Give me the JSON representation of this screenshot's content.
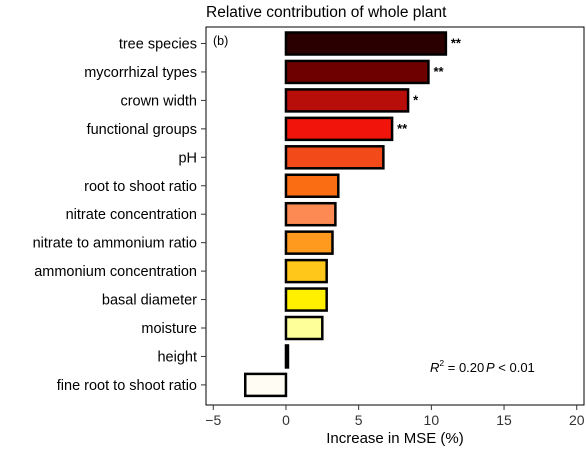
{
  "chart_data": {
    "type": "bar",
    "orientation": "horizontal",
    "title": "Relative contribution of whole plant",
    "panel_tag": "(b)",
    "xlabel": "Increase in MSE (%)",
    "ylabel": "",
    "xlim": [
      -5.5,
      20.5
    ],
    "xticks": [
      -5,
      0,
      5,
      10,
      15,
      20
    ],
    "xtick_labels": [
      "−5",
      "0",
      "5",
      "10",
      "15",
      "20"
    ],
    "grid": false,
    "categories": [
      "tree species",
      "mycorrhizal types",
      "crown width",
      "functional groups",
      "pH",
      "root to shoot ratio",
      "nitrate concentration",
      "nitrate to ammonium ratio",
      "ammonium concentration",
      "basal diameter",
      "moisture",
      "height",
      "fine root to shoot ratio"
    ],
    "values": [
      11.0,
      9.8,
      8.4,
      7.3,
      6.7,
      3.6,
      3.4,
      3.2,
      2.8,
      2.8,
      2.5,
      0.1,
      -2.8
    ],
    "significance": [
      "**",
      "**",
      "*",
      "**",
      "",
      "",
      "",
      "",
      "",
      "",
      "",
      "",
      ""
    ],
    "bar_colors": [
      "#2b0000",
      "#6f0000",
      "#b80e0a",
      "#f0140a",
      "#f34a1a",
      "#fa6d12",
      "#fd8a52",
      "#ff9a1e",
      "#ffc71a",
      "#fff000",
      "#ffff9a",
      "#0a0000",
      "#fffdf3"
    ],
    "annotation": {
      "r_label": "R",
      "r_sup": "2",
      "r_value": " = 0.20",
      "p_label": "P",
      "p_value": " < 0.01"
    }
  }
}
